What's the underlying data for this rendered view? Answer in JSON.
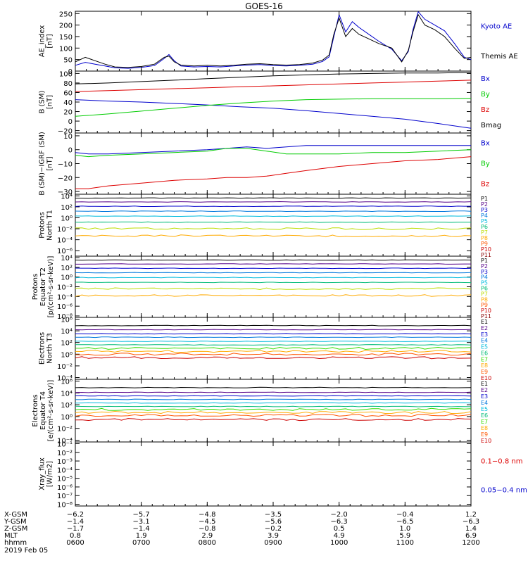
{
  "title": "GOES-16",
  "colors": {
    "black": "#000000",
    "blue": "#0000cc",
    "green": "#00cc00",
    "red": "#dd0000",
    "P": [
      "#000000",
      "#550088",
      "#0000cc",
      "#0077dd",
      "#00bbdd",
      "#00bb77",
      "#33dd00",
      "#bbdd00",
      "#ffaa00",
      "#ff5500",
      "#cc0000"
    ],
    "E": [
      "#000000",
      "#550088",
      "#0000cc",
      "#0077dd",
      "#00bbdd",
      "#00bb77",
      "#33dd00",
      "#bbdd00",
      "#ffaa00",
      "#ff5500"
    ]
  },
  "chart_data": [
    {
      "id": "ae",
      "type": "line",
      "ylabel": [
        "AE_index",
        "[nT]"
      ],
      "ylim": [
        0,
        260
      ],
      "yscale": "linear",
      "yticks": [
        {
          "v": 0,
          "label": "0"
        },
        {
          "v": 50,
          "label": "50"
        },
        {
          "v": 100,
          "label": "100"
        },
        {
          "v": 150,
          "label": "150"
        },
        {
          "v": 200,
          "label": "200"
        },
        {
          "v": 250,
          "label": "250"
        }
      ],
      "series": [
        {
          "name": "Kyoto AE",
          "color": "#0000cc",
          "label_frac": 0.25,
          "x": [
            6.0,
            6.15,
            6.3,
            6.45,
            6.6,
            6.8,
            7.0,
            7.2,
            7.35,
            7.42,
            7.5,
            7.6,
            7.8,
            8.0,
            8.2,
            8.4,
            8.6,
            8.8,
            9.0,
            9.2,
            9.4,
            9.6,
            9.75,
            9.85,
            9.92,
            10.0,
            10.1,
            10.2,
            10.3,
            10.45,
            10.6,
            10.8,
            10.95,
            11.05,
            11.12,
            11.2,
            11.3,
            11.45,
            11.6,
            11.75,
            11.9,
            12.0
          ],
          "y": [
            25,
            38,
            30,
            22,
            14,
            12,
            16,
            24,
            55,
            72,
            45,
            22,
            18,
            20,
            18,
            22,
            26,
            28,
            24,
            22,
            25,
            30,
            42,
            62,
            150,
            245,
            170,
            215,
            190,
            160,
            130,
            95,
            45,
            85,
            180,
            258,
            225,
            200,
            175,
            120,
            60,
            50
          ]
        },
        {
          "name": "Themis AE",
          "color": "#000000",
          "label_frac": 0.75,
          "x": [
            6.0,
            6.15,
            6.3,
            6.45,
            6.6,
            6.8,
            7.0,
            7.2,
            7.35,
            7.42,
            7.5,
            7.6,
            7.8,
            8.0,
            8.2,
            8.4,
            8.6,
            8.8,
            9.0,
            9.2,
            9.4,
            9.6,
            9.75,
            9.85,
            9.92,
            10.0,
            10.1,
            10.2,
            10.3,
            10.45,
            10.6,
            10.8,
            10.95,
            11.05,
            11.12,
            11.2,
            11.3,
            11.45,
            11.6,
            11.75,
            11.9,
            12.0
          ],
          "y": [
            40,
            60,
            45,
            30,
            18,
            16,
            20,
            30,
            60,
            65,
            40,
            26,
            22,
            25,
            22,
            25,
            30,
            32,
            28,
            26,
            28,
            35,
            48,
            70,
            160,
            230,
            150,
            185,
            160,
            140,
            120,
            100,
            40,
            90,
            170,
            245,
            200,
            180,
            150,
            100,
            55,
            60
          ]
        }
      ]
    },
    {
      "id": "bsm",
      "type": "line",
      "ylabel": [
        "B (SM)",
        "[nT]"
      ],
      "ylim": [
        -25,
        105
      ],
      "yscale": "linear",
      "yticks": [
        {
          "v": -20,
          "label": "−20"
        },
        {
          "v": 0,
          "label": "0"
        },
        {
          "v": 20,
          "label": "20"
        },
        {
          "v": 40,
          "label": "40"
        },
        {
          "v": 60,
          "label": "60"
        },
        {
          "v": 80,
          "label": "80"
        },
        {
          "v": 100,
          "label": "100"
        }
      ],
      "labels_evenly": true,
      "series": [
        {
          "name": "Bx",
          "color": "#0000cc",
          "x": [
            6.0,
            6.5,
            7.0,
            7.5,
            8.0,
            8.5,
            9.0,
            9.5,
            10.0,
            10.5,
            11.0,
            11.5,
            12.0
          ],
          "y": [
            45,
            42,
            40,
            37,
            34,
            30,
            27,
            22,
            16,
            10,
            4,
            -5,
            -15
          ]
        },
        {
          "name": "By",
          "color": "#00cc00",
          "x": [
            6.0,
            6.5,
            7.0,
            7.5,
            8.0,
            8.5,
            9.0,
            9.5,
            10.0,
            10.5,
            11.0,
            11.5,
            12.0
          ],
          "y": [
            10,
            15,
            21,
            27,
            33,
            38,
            42,
            45,
            46,
            47,
            47,
            47,
            48
          ]
        },
        {
          "name": "Bz",
          "color": "#dd0000",
          "x": [
            6.0,
            6.5,
            7.0,
            7.5,
            8.0,
            8.5,
            9.0,
            9.5,
            10.0,
            10.5,
            11.0,
            11.5,
            12.0
          ],
          "y": [
            62,
            64,
            66,
            68,
            70,
            72,
            74,
            76,
            78,
            80,
            82,
            84,
            86
          ]
        },
        {
          "name": "Bmag",
          "color": "#000000",
          "x": [
            6.0,
            6.5,
            7.0,
            7.5,
            8.0,
            8.5,
            9.0,
            9.5,
            10.0,
            10.5,
            11.0,
            11.5,
            12.0
          ],
          "y": [
            78,
            80,
            83,
            86,
            89,
            92,
            95,
            97,
            99,
            100,
            101,
            101,
            102
          ]
        }
      ]
    },
    {
      "id": "bigrf",
      "type": "line",
      "ylabel": [
        "B (SM)−IGRF (SM)",
        "[nT]"
      ],
      "ylim": [
        -32,
        12
      ],
      "yscale": "linear",
      "yticks": [
        {
          "v": -30,
          "label": "−30"
        },
        {
          "v": -20,
          "label": "−20"
        },
        {
          "v": -10,
          "label": "−10"
        },
        {
          "v": 0,
          "label": "0"
        },
        {
          "v": 10,
          "label": "10"
        }
      ],
      "labels_evenly": true,
      "series": [
        {
          "name": "Bx",
          "color": "#0000cc",
          "x": [
            6.0,
            6.2,
            6.5,
            7.0,
            7.5,
            8.0,
            8.3,
            8.6,
            8.9,
            9.2,
            9.5,
            10.0,
            10.5,
            11.0,
            11.5,
            12.0
          ],
          "y": [
            -2,
            -3,
            -3,
            -2,
            -1,
            0,
            1,
            2,
            1,
            2,
            3,
            3,
            3,
            3,
            3,
            3
          ]
        },
        {
          "name": "By",
          "color": "#00cc00",
          "x": [
            6.0,
            6.2,
            6.5,
            7.0,
            7.5,
            8.0,
            8.3,
            8.6,
            8.9,
            9.2,
            9.5,
            10.0,
            10.5,
            11.0,
            11.5,
            12.0
          ],
          "y": [
            -4,
            -5,
            -4,
            -3,
            -2,
            -1,
            1,
            1,
            -1,
            -3,
            -3,
            -3,
            -2,
            -2,
            -1,
            0
          ]
        },
        {
          "name": "Bz",
          "color": "#dd0000",
          "x": [
            6.0,
            6.2,
            6.5,
            7.0,
            7.5,
            8.0,
            8.3,
            8.6,
            8.9,
            9.2,
            9.5,
            10.0,
            10.5,
            11.0,
            11.5,
            12.0
          ],
          "y": [
            -28,
            -28,
            -26,
            -24,
            -22,
            -21,
            -20,
            -20,
            -19,
            -17,
            -15,
            -12,
            -10,
            -8,
            -7,
            -5
          ]
        }
      ]
    },
    {
      "id": "pn",
      "type": "line",
      "ylabel": [
        "Protons",
        "North T1"
      ],
      "yscale": "log",
      "ylim": [
        -7,
        4.3
      ],
      "yticks": [
        {
          "v": 4,
          "label": "10⁴"
        },
        {
          "v": 2,
          "label": "10²"
        },
        {
          "v": 0,
          "label": "10⁰"
        },
        {
          "v": -2,
          "label": "10⁻²"
        },
        {
          "v": -4,
          "label": "10⁻⁴"
        },
        {
          "v": -6,
          "label": "10⁻⁶"
        }
      ],
      "series": [
        {
          "name": "P1",
          "color": "#000000",
          "y": [
            3.6
          ]
        },
        {
          "name": "P2",
          "color": "#550088",
          "y": [
            2.9
          ]
        },
        {
          "name": "P3",
          "color": "#0000cc",
          "y": [
            2.1
          ]
        },
        {
          "name": "P4",
          "color": "#0077dd",
          "y": [
            1.2
          ]
        },
        {
          "name": "P5",
          "color": "#00bbdd",
          "y": [
            0.3
          ]
        },
        {
          "name": "P6",
          "color": "#00bb77",
          "y": [
            -0.8
          ]
        },
        {
          "name": "P7",
          "color": "#bbdd00",
          "y": [
            -2.0
          ]
        },
        {
          "name": "P8",
          "color": "#ffaa00",
          "y": [
            -3.3
          ]
        },
        {
          "name": "P9",
          "color": "#ff5500",
          "y": []
        },
        {
          "name": "P10",
          "color": "#cc0000",
          "y": []
        },
        {
          "name": "P11",
          "color": "#880000",
          "y": []
        }
      ]
    },
    {
      "id": "pe",
      "type": "line",
      "ylabel": [
        "Protons",
        "Equator T2",
        "[p/(cm²-s-sr-keV)]"
      ],
      "yscale": "log",
      "ylim": [
        -8.3,
        4.3
      ],
      "yticks": [
        {
          "v": 4,
          "label": "10⁴"
        },
        {
          "v": 2,
          "label": "10²"
        },
        {
          "v": 0,
          "label": "10⁰"
        },
        {
          "v": -2,
          "label": "10⁻²"
        },
        {
          "v": -4,
          "label": "10⁻⁴"
        },
        {
          "v": -6,
          "label": "10⁻⁶"
        },
        {
          "v": -8,
          "label": "10⁻⁸"
        }
      ],
      "series": [
        {
          "name": "P1",
          "color": "#000000",
          "y": [
            3.5
          ]
        },
        {
          "name": "P2",
          "color": "#550088",
          "y": [
            2.7
          ]
        },
        {
          "name": "P3",
          "color": "#0000cc",
          "y": [
            1.8
          ]
        },
        {
          "name": "P4",
          "color": "#0077dd",
          "y": [
            0.9
          ]
        },
        {
          "name": "P5",
          "color": "#00bbdd",
          "y": [
            -0.1
          ]
        },
        {
          "name": "P6",
          "color": "#00bb77",
          "y": [
            -1.1
          ]
        },
        {
          "name": "P7",
          "color": "#bbdd00",
          "y": [
            -2.4
          ]
        },
        {
          "name": "P8",
          "color": "#ffaa00",
          "y": [
            -3.8
          ]
        },
        {
          "name": "P9",
          "color": "#ff5500",
          "y": []
        },
        {
          "name": "P10",
          "color": "#cc0000",
          "y": []
        },
        {
          "name": "P11",
          "color": "#880000",
          "y": []
        }
      ]
    },
    {
      "id": "en",
      "type": "line",
      "ylabel": [
        "Electrons",
        "North T3"
      ],
      "yscale": "log",
      "ylim": [
        -4.3,
        6.3
      ],
      "yticks": [
        {
          "v": 6,
          "label": "10⁶"
        },
        {
          "v": 4,
          "label": "10⁴"
        },
        {
          "v": 2,
          "label": "10²"
        },
        {
          "v": 0,
          "label": "10⁰"
        },
        {
          "v": -2,
          "label": "10⁻²"
        },
        {
          "v": -4,
          "label": "10⁻⁴"
        }
      ],
      "series": [
        {
          "name": "E1",
          "color": "#000000",
          "y": [
            4.9
          ]
        },
        {
          "name": "E2",
          "color": "#550088",
          "y": [
            4.2
          ]
        },
        {
          "name": "E3",
          "color": "#0000cc",
          "y": [
            3.5
          ]
        },
        {
          "name": "E4",
          "color": "#0077dd",
          "y": [
            2.9
          ]
        },
        {
          "name": "E5",
          "color": "#00bbdd",
          "y": [
            2.2
          ]
        },
        {
          "name": "E6",
          "color": "#00bb77",
          "y": [
            1.6
          ]
        },
        {
          "name": "E7",
          "color": "#33dd00",
          "y": [
            1.0
          ]
        },
        {
          "name": "E8",
          "color": "#ffaa00",
          "y": [
            0.5
          ]
        },
        {
          "name": "E9",
          "color": "#ff5500",
          "y": [
            0.0
          ]
        },
        {
          "name": "E10",
          "color": "#cc0000",
          "y": [
            -0.6
          ]
        }
      ]
    },
    {
      "id": "ee",
      "type": "line",
      "ylabel": [
        "Electrons",
        "Equator T4",
        "[e/(cm²-s-sr-keV)]"
      ],
      "yscale": "log",
      "ylim": [
        -4.3,
        6.3
      ],
      "yticks": [
        {
          "v": 6,
          "label": "10⁶"
        },
        {
          "v": 4,
          "label": "10⁴"
        },
        {
          "v": 2,
          "label": "10²"
        },
        {
          "v": 0,
          "label": "10⁰"
        },
        {
          "v": -2,
          "label": "10⁻²"
        },
        {
          "v": -4,
          "label": "10⁻⁴"
        }
      ],
      "series": [
        {
          "name": "E1",
          "color": "#000000",
          "y": [
            4.9
          ]
        },
        {
          "name": "E2",
          "color": "#550088",
          "y": [
            4.1
          ]
        },
        {
          "name": "E3",
          "color": "#0000cc",
          "y": [
            3.5
          ]
        },
        {
          "name": "E4",
          "color": "#0077dd",
          "y": [
            2.9
          ]
        },
        {
          "name": "E5",
          "color": "#00bbdd",
          "y": [
            2.3
          ]
        },
        {
          "name": "E6",
          "color": "#00bb77",
          "y": [
            1.7
          ]
        },
        {
          "name": "E7",
          "color": "#33dd00",
          "y": [
            1.2
          ]
        },
        {
          "name": "E8",
          "color": "#ffaa00",
          "y": [
            0.7
          ]
        },
        {
          "name": "E9",
          "color": "#ff5500",
          "y": [
            0.2
          ]
        },
        {
          "name": "E10",
          "color": "#cc0000",
          "y": [
            -0.5
          ]
        }
      ]
    },
    {
      "id": "xray",
      "type": "line",
      "ylabel": [
        "Xray_flux",
        "[W/m2]"
      ],
      "yscale": "log",
      "ylim": [
        -8.2,
        -0.8
      ],
      "yticks": [
        {
          "v": -1,
          "label": "10⁻¹"
        },
        {
          "v": -2,
          "label": "10⁻²"
        },
        {
          "v": -3,
          "label": "10⁻³"
        },
        {
          "v": -4,
          "label": "10⁻⁴"
        },
        {
          "v": -5,
          "label": "10⁻⁵"
        },
        {
          "v": -6,
          "label": "10⁻⁶"
        },
        {
          "v": -7,
          "label": "10⁻⁷"
        },
        {
          "v": -8,
          "label": "10⁻⁸"
        }
      ],
      "series": [
        {
          "name": "0.1−0.8 nm",
          "color": "#dd0000",
          "y": [],
          "label_frac": 0.3
        },
        {
          "name": "0.05−0.4 nm",
          "color": "#0000cc",
          "y": [],
          "label_frac": 0.75
        }
      ]
    }
  ],
  "time_axis": {
    "xlim": [
      6.0,
      12.0
    ],
    "rows": [
      {
        "name": "X-GSM",
        "values": [
          "−6.2",
          "−5.7",
          "−4.8",
          "−3.5",
          "−2.0",
          "−0.4",
          "1.2"
        ]
      },
      {
        "name": "Y-GSM",
        "values": [
          "−1.4",
          "−3.1",
          "−4.5",
          "−5.6",
          "−6.3",
          "−6.5",
          "−6.3"
        ]
      },
      {
        "name": "Z-GSM",
        "values": [
          "−1.7",
          "−1.4",
          "−0.8",
          "−0.2",
          "0.5",
          "1.0",
          "1.4"
        ]
      },
      {
        "name": "MLT",
        "values": [
          "0.8",
          "1.9",
          "2.9",
          "3.9",
          "4.9",
          "5.9",
          "6.9"
        ]
      },
      {
        "name": "hhmm",
        "values": [
          "0600",
          "0700",
          "0800",
          "0900",
          "1000",
          "1100",
          "1200"
        ]
      }
    ],
    "date": "2019 Feb 05"
  }
}
